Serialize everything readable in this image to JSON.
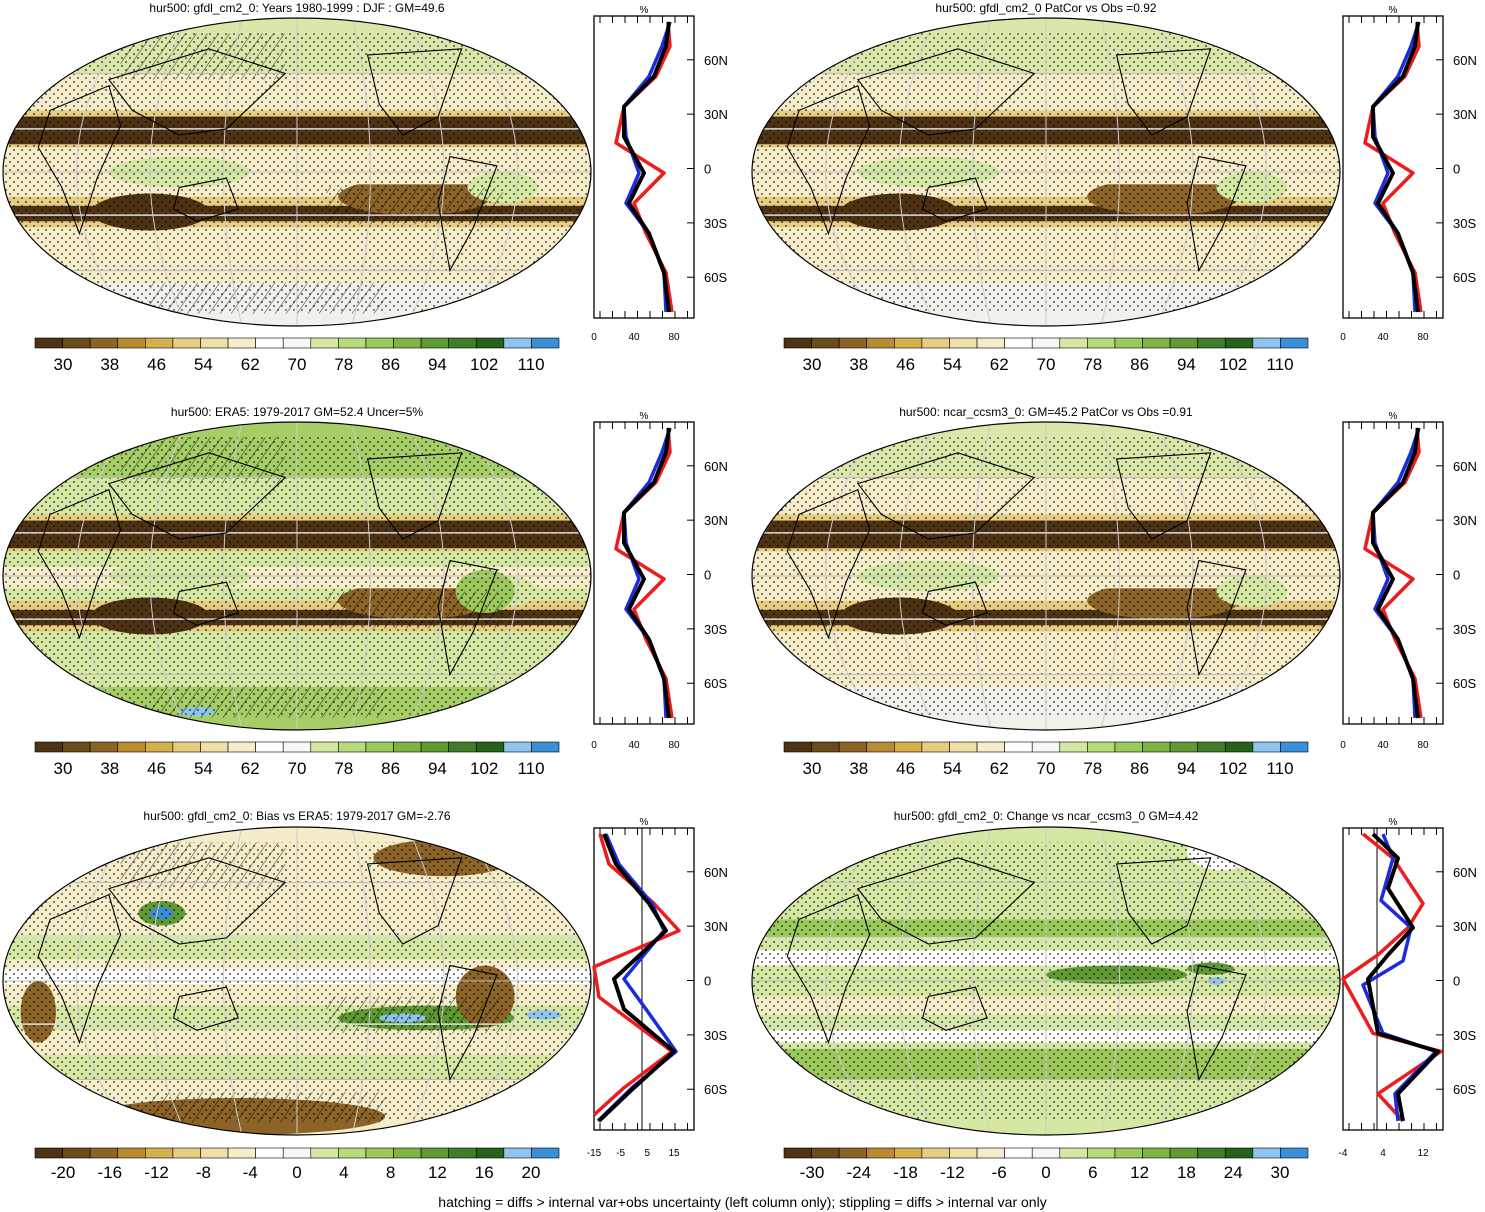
{
  "panels": [
    {
      "id": "p1",
      "title": "hur500: gfdl_cm2_0: Years 1980-1999 : DJF : GM=49.6",
      "type": "absolute",
      "hatching": true,
      "colorbar_labels": [
        "30",
        "38",
        "46",
        "54",
        "62",
        "70",
        "78",
        "86",
        "94",
        "102",
        "110"
      ],
      "profile_x_labels": [
        "0",
        "40",
        "80"
      ],
      "profile_unit": "%",
      "profile_y_labels": [
        "60N",
        "30N",
        "0",
        "30S",
        "60S"
      ]
    },
    {
      "id": "p2",
      "title": "hur500: gfdl_cm2_0 PatCor vs Obs =0.92",
      "type": "absolute",
      "hatching": false,
      "colorbar_labels": [
        "30",
        "38",
        "46",
        "54",
        "62",
        "70",
        "78",
        "86",
        "94",
        "102",
        "110"
      ],
      "profile_x_labels": [
        "0",
        "40",
        "80"
      ],
      "profile_unit": "%",
      "profile_y_labels": [
        "60N",
        "30N",
        "0",
        "30S",
        "60S"
      ]
    },
    {
      "id": "p3",
      "title": "hur500: ERA5: 1979-2017 GM=52.4 Uncer=5%",
      "type": "absolute-obs",
      "hatching": true,
      "colorbar_labels": [
        "30",
        "38",
        "46",
        "54",
        "62",
        "70",
        "78",
        "86",
        "94",
        "102",
        "110"
      ],
      "profile_x_labels": [
        "0",
        "40",
        "80"
      ],
      "profile_unit": "%",
      "profile_y_labels": [
        "60N",
        "30N",
        "0",
        "30S",
        "60S"
      ]
    },
    {
      "id": "p4",
      "title": "hur500: ncar_ccsm3_0: GM=45.2 PatCor vs Obs =0.91",
      "type": "absolute",
      "hatching": false,
      "colorbar_labels": [
        "30",
        "38",
        "46",
        "54",
        "62",
        "70",
        "78",
        "86",
        "94",
        "102",
        "110"
      ],
      "profile_x_labels": [
        "0",
        "40",
        "80"
      ],
      "profile_unit": "%",
      "profile_y_labels": [
        "60N",
        "30N",
        "0",
        "30S",
        "60S"
      ]
    },
    {
      "id": "p5",
      "title": "hur500: gfdl_cm2_0: Bias vs ERA5: 1979-2017 GM=-2.76",
      "type": "bias",
      "hatching": true,
      "colorbar_labels": [
        "-20",
        "-16",
        "-12",
        "-8",
        "-4",
        "0",
        "4",
        "8",
        "12",
        "16",
        "20"
      ],
      "profile_x_labels": [
        "-15",
        "-5",
        "5",
        "15"
      ],
      "profile_unit": "%",
      "profile_y_labels": [
        "60N",
        "30N",
        "0",
        "30S",
        "60S"
      ]
    },
    {
      "id": "p6",
      "title": "hur500: gfdl_cm2_0: Change vs ncar_ccsm3_0 GM=4.42",
      "type": "change",
      "hatching": false,
      "colorbar_labels": [
        "-30",
        "-24",
        "-18",
        "-12",
        "-6",
        "0",
        "6",
        "12",
        "18",
        "24",
        "30"
      ],
      "profile_x_labels": [
        "-4",
        "4",
        "12"
      ],
      "profile_unit": "%",
      "profile_y_labels": [
        "60N",
        "30N",
        "0",
        "30S",
        "60S"
      ]
    }
  ],
  "colors": {
    "sequential": [
      "#4d3213",
      "#6b4a1c",
      "#8c6428",
      "#b98c33",
      "#d7b04e",
      "#e6cd82",
      "#efdfa8",
      "#f5ecca",
      "#ffffff",
      "#f7f7f7",
      "#d4e8a4",
      "#b7da7c",
      "#9cc95c",
      "#7fb444",
      "#5f9a34",
      "#3f7d28",
      "#27611c",
      "#8fc4ec",
      "#3a8fd6"
    ],
    "profile_lines": {
      "red": "#ee1c1c",
      "blue": "#1a2be0",
      "black": "#000000"
    }
  },
  "footer": "hatching = diffs > internal var+obs uncertainty (left column only); stippling = diffs > internal var only"
}
